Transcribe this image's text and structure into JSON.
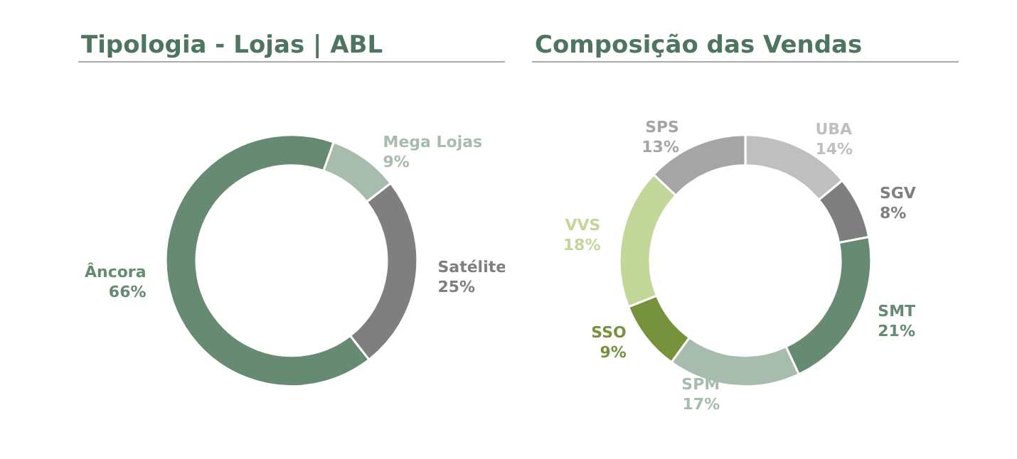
{
  "chart_data": [
    {
      "type": "donut",
      "title": "Tipologia - Lojas | ABL",
      "categories": [
        "Âncora",
        "Mega Lojas",
        "Satélite"
      ],
      "values": [
        66,
        9,
        25
      ],
      "value_labels": [
        "66%",
        "9%",
        "25%"
      ],
      "colors": [
        "#678a73",
        "#a8bcae",
        "#7f7f7f"
      ],
      "legend": false
    },
    {
      "type": "donut",
      "title": "Composição das Vendas",
      "categories": [
        "UBA",
        "SGV",
        "SMT",
        "SPM",
        "SSO",
        "VVS",
        "SPS"
      ],
      "values": [
        14,
        8,
        21,
        17,
        9,
        18,
        13
      ],
      "value_labels": [
        "14%",
        "8%",
        "21%",
        "17%",
        "9%",
        "18%",
        "13%"
      ],
      "colors": [
        "#bfbfbf",
        "#7f7f7f",
        "#678a73",
        "#a8bcae",
        "#76923c",
        "#c4d79b",
        "#a5a5a5"
      ],
      "legend": false
    }
  ]
}
